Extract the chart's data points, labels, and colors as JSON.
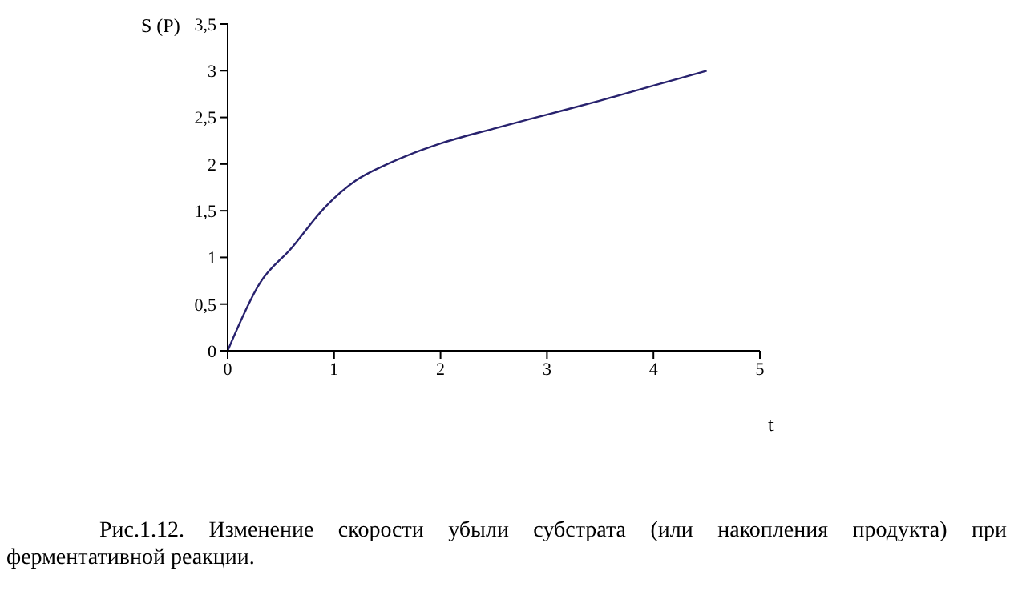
{
  "chart_data": {
    "type": "line",
    "xlabel": "t",
    "ylabel": "S (P)",
    "x": [
      0,
      0.3,
      0.6,
      0.9,
      1.2,
      1.5,
      2,
      2.5,
      3,
      3.5,
      4,
      4.5
    ],
    "series": [
      {
        "color": "#28226e",
        "values": [
          0,
          0.72,
          1.1,
          1.52,
          1.82,
          2.0,
          2.22,
          2.38,
          2.53,
          2.68,
          2.84,
          3.0
        ]
      }
    ],
    "xlim": [
      0,
      5
    ],
    "xticks": [
      0,
      1,
      2,
      3,
      4,
      5
    ],
    "ylim": [
      0,
      3.5
    ],
    "yticks": [
      0,
      {
        "value": 0.5,
        "label": "0,5"
      },
      1,
      {
        "value": 1.5,
        "label": "1,5"
      },
      2,
      {
        "value": 2.5,
        "label": "2,5"
      },
      3,
      {
        "value": 3.5,
        "label": "3,5"
      }
    ],
    "grid": false,
    "legend": false,
    "marker": "none",
    "line_style": "solid",
    "annotations": [
      "Рис.1.12. Изменение скорости убыли субстрата (или накопления продукта)  при ферментативной реакции."
    ]
  }
}
